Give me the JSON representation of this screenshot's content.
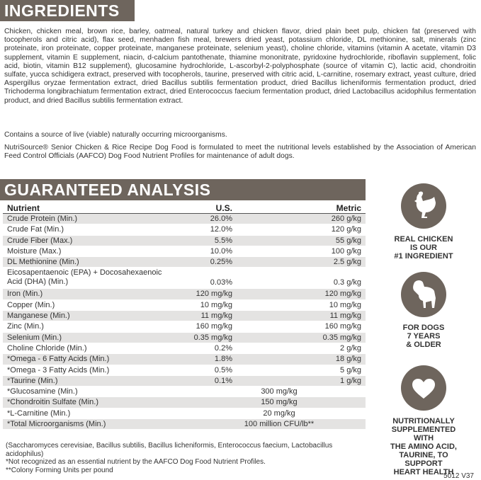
{
  "ingredients": {
    "title": "INGREDIENTS",
    "text": "Chicken, chicken meal, brown rice, barley, oatmeal, natural turkey and chicken flavor, dried plain beet pulp, chicken fat (preserved with tocopherols and citric acid), flax seed, menhaden fish meal, brewers dried yeast, potassium chloride, DL methionine, salt, minerals (zinc proteinate, iron proteinate, copper proteinate, manganese proteinate, selenium yeast), choline chloride, vitamins (vitamin A acetate, vitamin D3 supplement, vitamin E supplement, niacin, d-calcium pantothenate, thiamine mononitrate, pyridoxine hydrochloride, riboflavin supplement, folic acid, biotin, vitamin B12 supplement), glucosamine hydrochloride, L-ascorbyl-2-polyphosphate (source of vitamin C), lactic acid, chondroitin sulfate, yucca schidigera extract, preserved with tocopherols, taurine, preserved with citric acid, L-carnitine, rosemary extract, yeast culture, dried Aspergillus oryzae fermentation extract, dried Bacillus subtilis fermentation product, dried Bacillus licheniformis fermentation product, dried Trichoderma longibrachiatum fermentation extract, dried Enterococcus faecium fermentation product, dried Lactobacillus acidophilus fermentation product, and dried Bacillus subtilis fermentation extract.",
    "note": "Contains a source of live (viable) naturally occurring microorganisms.",
    "statement": "NutriSource® Senior Chicken & Rice Recipe Dog Food is formulated to meet the nutritional levels established by the Association of American Feed Control Officials (AAFCO) Dog Food Nutrient Profiles for maintenance of adult dogs."
  },
  "analysis": {
    "title": "GUARANTEED ANALYSIS",
    "header": [
      "Nutrient",
      "U.S.",
      "Metric"
    ],
    "rows": [
      [
        "Crude Protein (Min.)",
        "26.0%",
        "260 g/kg"
      ],
      [
        "Crude Fat (Min.)",
        "12.0%",
        "120 g/kg"
      ],
      [
        "Crude Fiber (Max.)",
        "5.5%",
        "55 g/kg"
      ],
      [
        "Moisture (Max.)",
        "10.0%",
        "100 g/kg"
      ],
      [
        "DL Methionine (Min.)",
        "0.25%",
        "2.5 g/kg"
      ],
      [
        "Eicosapentaenoic (EPA) + Docosahexaenoic Acid (DHA) (Min.)",
        "0.03%",
        "0.3 g/kg"
      ],
      [
        "Iron (Min.)",
        "120 mg/kg",
        "120 mg/kg"
      ],
      [
        "Copper (Min.)",
        "10 mg/kg",
        "10 mg/kg"
      ],
      [
        "Manganese (Min.)",
        "11 mg/kg",
        "11 mg/kg"
      ],
      [
        "Zinc (Min.)",
        "160 mg/kg",
        "160 mg/kg"
      ],
      [
        "Selenium (Min.)",
        "0.35 mg/kg",
        "0.35 mg/kg"
      ],
      [
        "Choline Chloride (Min.)",
        "0.2%",
        "2 g/kg"
      ],
      [
        "*Omega - 6 Fatty Acids (Min.)",
        "1.8%",
        "18 g/kg"
      ],
      [
        "*Omega - 3 Fatty Acids (Min.)",
        "0.5%",
        "5 g/kg"
      ],
      [
        "*Taurine (Min.)",
        "0.1%",
        "1 g/kg"
      ],
      [
        "*Glucosamine (Min.)",
        "300 mg/kg"
      ],
      [
        "*Chondroitin Sulfate (Min.)",
        "150 mg/kg"
      ],
      [
        "*L-Carnitine (Min.)",
        "20 mg/kg"
      ],
      [
        "*Total Microorganisms (Min.)",
        "100 million CFU/lb**"
      ]
    ]
  },
  "badges": [
    {
      "lines": [
        "REAL CHICKEN",
        "IS OUR",
        "#1 INGREDIENT"
      ]
    },
    {
      "lines": [
        "FOR DOGS",
        "7 YEARS",
        "& OLDER"
      ]
    },
    {
      "lines": [
        "NUTRITIONALLY",
        "SUPPLEMENTED WITH",
        "THE AMINO ACID,",
        "TAURINE, TO SUPPORT",
        "HEART HEALTH"
      ]
    }
  ],
  "footnotes": [
    "(Saccharomyces cerevisiae, Bacillus subtilis, Bacillus licheniformis, Enterococcus faecium, Lactobacillus acidophilus)",
    "*Not recognized as an essential nutrient by the AAFCO Dog Food Nutrient Profiles.",
    "**Colony Forming Units per pound"
  ],
  "code": "5012 V37"
}
